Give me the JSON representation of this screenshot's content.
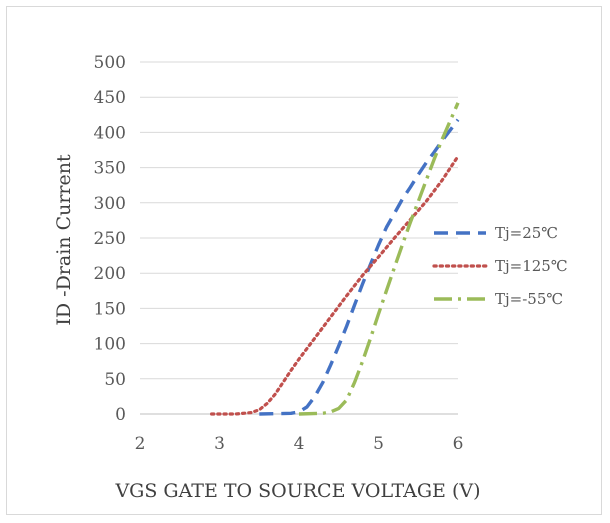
{
  "chart_data": {
    "type": "line",
    "title": "",
    "xlabel": "VGS GATE TO SOURCE VOLTAGE (V)",
    "ylabel": "ID -Drain Current",
    "xlim": [
      2,
      6
    ],
    "ylim": [
      0,
      500
    ],
    "x_ticks": [
      2,
      3,
      4,
      5,
      6
    ],
    "y_ticks": [
      0,
      50,
      100,
      150,
      200,
      250,
      300,
      350,
      400,
      450,
      500
    ],
    "grid": "horizontal",
    "legend_position": "right",
    "series": [
      {
        "name": "Tj=25℃",
        "color": "#4472c4",
        "dash": "dashed",
        "points": [
          [
            3.5,
            0
          ],
          [
            3.9,
            1
          ],
          [
            4.0,
            3
          ],
          [
            4.1,
            10
          ],
          [
            4.2,
            25
          ],
          [
            4.3,
            45
          ],
          [
            4.4,
            70
          ],
          [
            4.5,
            97
          ],
          [
            4.6,
            125
          ],
          [
            4.7,
            155
          ],
          [
            4.8,
            185
          ],
          [
            4.9,
            213
          ],
          [
            5.0,
            240
          ],
          [
            5.1,
            265
          ],
          [
            5.2,
            285
          ],
          [
            5.3,
            305
          ],
          [
            5.4,
            322
          ],
          [
            5.5,
            340
          ],
          [
            5.6,
            357
          ],
          [
            5.7,
            372
          ],
          [
            5.8,
            388
          ],
          [
            5.9,
            403
          ],
          [
            6.0,
            418
          ]
        ]
      },
      {
        "name": "Tj=125℃",
        "color": "#c0504d",
        "dash": "dotted",
        "points": [
          [
            2.9,
            0
          ],
          [
            3.2,
            0
          ],
          [
            3.4,
            2
          ],
          [
            3.5,
            6
          ],
          [
            3.6,
            15
          ],
          [
            3.7,
            28
          ],
          [
            3.8,
            45
          ],
          [
            3.9,
            62
          ],
          [
            4.0,
            78
          ],
          [
            4.2,
            108
          ],
          [
            4.4,
            138
          ],
          [
            4.6,
            168
          ],
          [
            4.8,
            197
          ],
          [
            5.0,
            223
          ],
          [
            5.2,
            250
          ],
          [
            5.4,
            276
          ],
          [
            5.6,
            302
          ],
          [
            5.8,
            332
          ],
          [
            6.0,
            366
          ]
        ]
      },
      {
        "name": "Tj=-55℃",
        "color": "#9bbb59",
        "dash": "dash-dot",
        "points": [
          [
            4.0,
            0
          ],
          [
            4.3,
            1
          ],
          [
            4.4,
            3
          ],
          [
            4.5,
            8
          ],
          [
            4.6,
            20
          ],
          [
            4.7,
            45
          ],
          [
            4.8,
            75
          ],
          [
            4.9,
            108
          ],
          [
            5.0,
            142
          ],
          [
            5.1,
            175
          ],
          [
            5.2,
            208
          ],
          [
            5.3,
            240
          ],
          [
            5.4,
            272
          ],
          [
            5.5,
            302
          ],
          [
            5.6,
            332
          ],
          [
            5.7,
            362
          ],
          [
            5.8,
            390
          ],
          [
            5.9,
            416
          ],
          [
            6.0,
            442
          ]
        ]
      }
    ]
  }
}
